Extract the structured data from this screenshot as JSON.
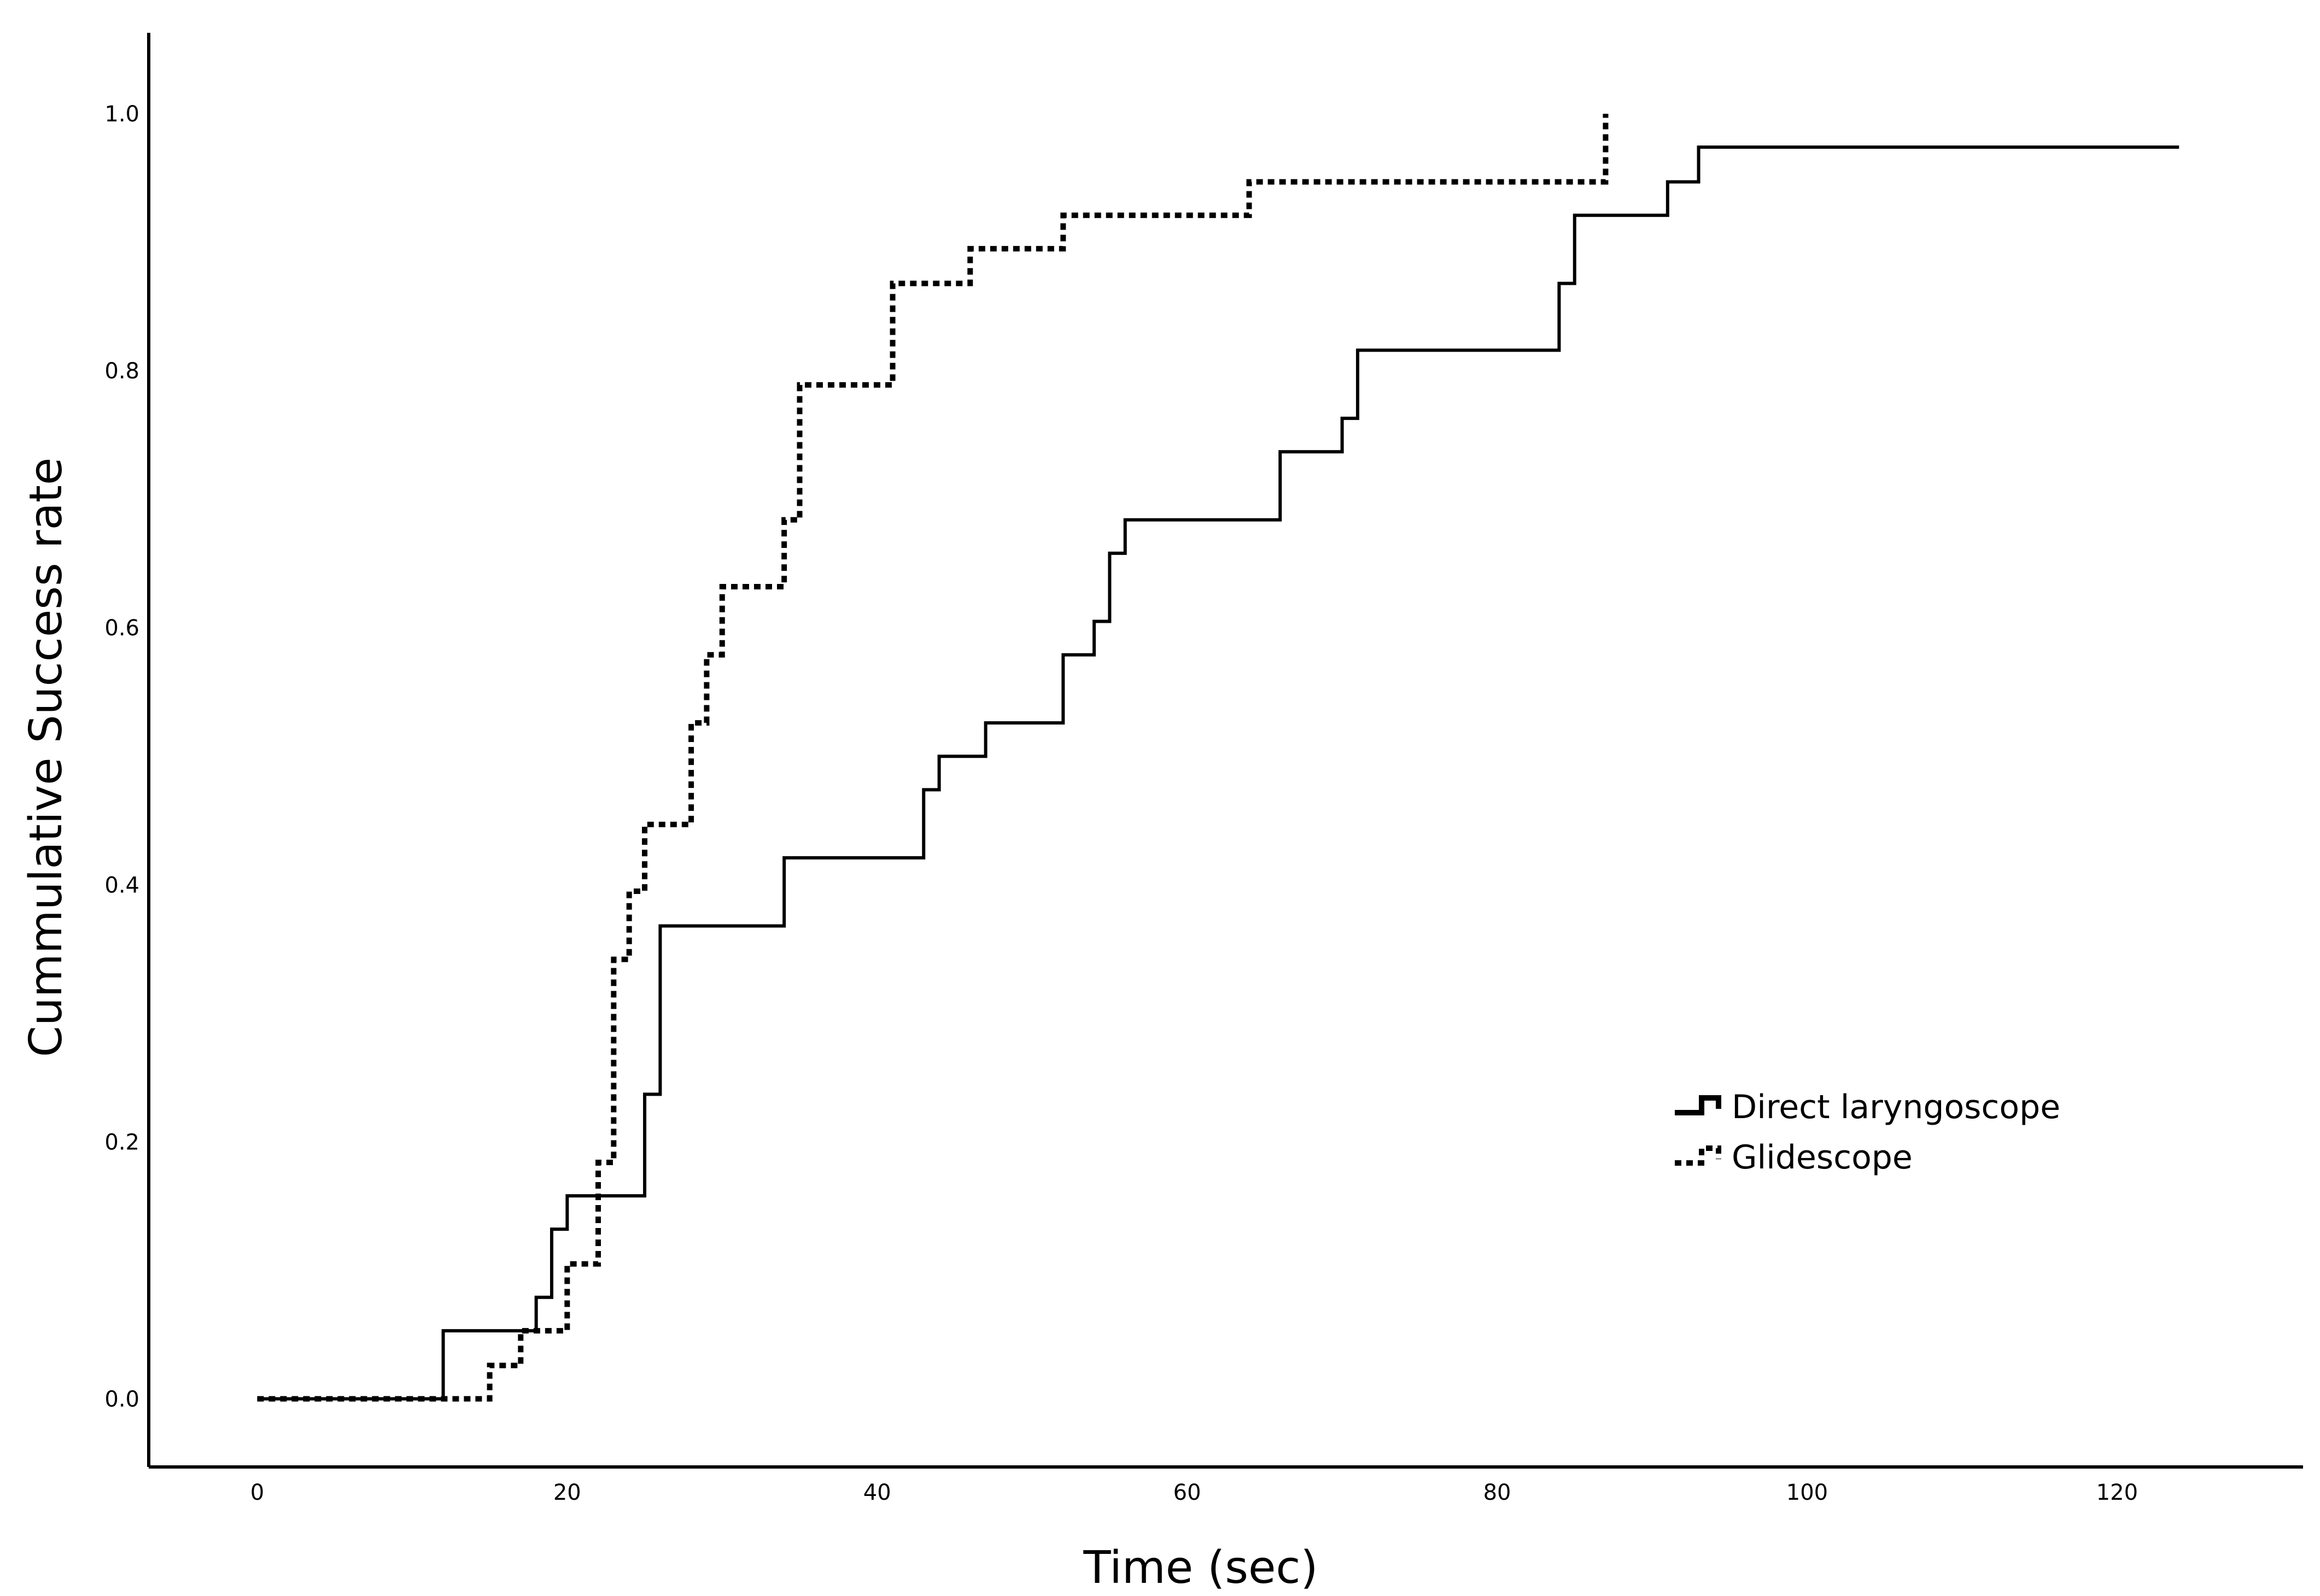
{
  "chart_data": {
    "type": "line",
    "title": "",
    "xlabel": "Time (sec)",
    "ylabel": "Cummulative Success rate",
    "xlim": [
      -7,
      132
    ],
    "ylim": [
      -0.053,
      1.063
    ],
    "x_ticks": [
      0,
      20,
      40,
      60,
      80,
      100,
      120
    ],
    "x_tick_labels": [
      "0",
      "20",
      "40",
      "60",
      "80",
      "100",
      "120"
    ],
    "y_ticks": [
      0,
      0.2,
      0.4,
      0.6,
      0.8,
      1.0
    ],
    "y_tick_labels": [
      "0.0",
      "0.2",
      "0.4",
      "0.6",
      "0.8",
      "1.0"
    ],
    "grid": false,
    "legend_position": "lower-right",
    "series": [
      {
        "name": "Direct laryngoscope",
        "line_style": "solid",
        "color": "#000000",
        "x": [
          0,
          12,
          18,
          19,
          20,
          25,
          26,
          34,
          43,
          44,
          47,
          52,
          54,
          55,
          56,
          66,
          70,
          71,
          84,
          85,
          91,
          93,
          124
        ],
        "y": [
          0.0,
          0.053,
          0.079,
          0.132,
          0.158,
          0.237,
          0.368,
          0.421,
          0.474,
          0.5,
          0.526,
          0.579,
          0.605,
          0.658,
          0.684,
          0.737,
          0.763,
          0.816,
          0.868,
          0.921,
          0.947,
          0.974,
          0.974
        ]
      },
      {
        "name": "Glidescope",
        "line_style": "dotted",
        "color": "#000000",
        "x": [
          0,
          15,
          17,
          20,
          22,
          23,
          24,
          25,
          28,
          29,
          30,
          34,
          35,
          41,
          46,
          52,
          64,
          87
        ],
        "y": [
          0.0,
          0.026,
          0.053,
          0.105,
          0.184,
          0.342,
          0.395,
          0.447,
          0.526,
          0.579,
          0.632,
          0.684,
          0.789,
          0.868,
          0.895,
          0.921,
          0.947,
          1.0
        ]
      }
    ]
  }
}
